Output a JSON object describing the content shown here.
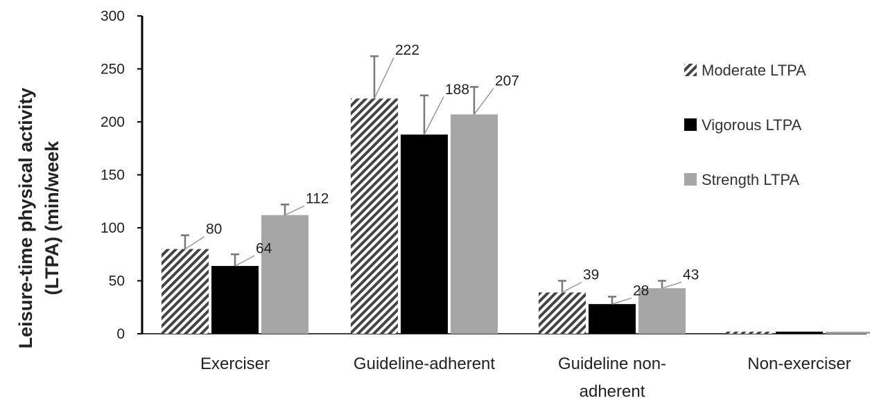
{
  "chart_data": {
    "type": "bar",
    "ylabel_line1": "Leisure-time physical activity",
    "ylabel_line2": "(LTPA) (min/week",
    "ylim": [
      0,
      300
    ],
    "yticks": [
      0,
      50,
      100,
      150,
      200,
      250,
      300
    ],
    "categories": [
      [
        "Exerciser"
      ],
      [
        "Guideline-adherent"
      ],
      [
        "Guideline non-",
        "adherent"
      ],
      [
        "Non-exerciser"
      ]
    ],
    "series": [
      {
        "name": "Moderate LTPA",
        "values": [
          80,
          222,
          39,
          2
        ],
        "error": [
          13,
          40,
          11,
          0
        ],
        "labels": [
          "80",
          "222",
          "39",
          ""
        ],
        "style": "hatched",
        "color": "#444444"
      },
      {
        "name": "Vigorous LTPA",
        "values": [
          64,
          188,
          28,
          2
        ],
        "error": [
          11,
          37,
          7,
          0
        ],
        "labels": [
          "64",
          "188",
          "28",
          ""
        ],
        "style": "solid",
        "color": "#000000"
      },
      {
        "name": "Strength LTPA",
        "values": [
          112,
          207,
          43,
          2
        ],
        "error": [
          10,
          26,
          7,
          0
        ],
        "labels": [
          "112",
          "207",
          "43",
          ""
        ],
        "style": "solid",
        "color": "#a6a6a6"
      }
    ],
    "legend_position": "right",
    "grid": false
  }
}
